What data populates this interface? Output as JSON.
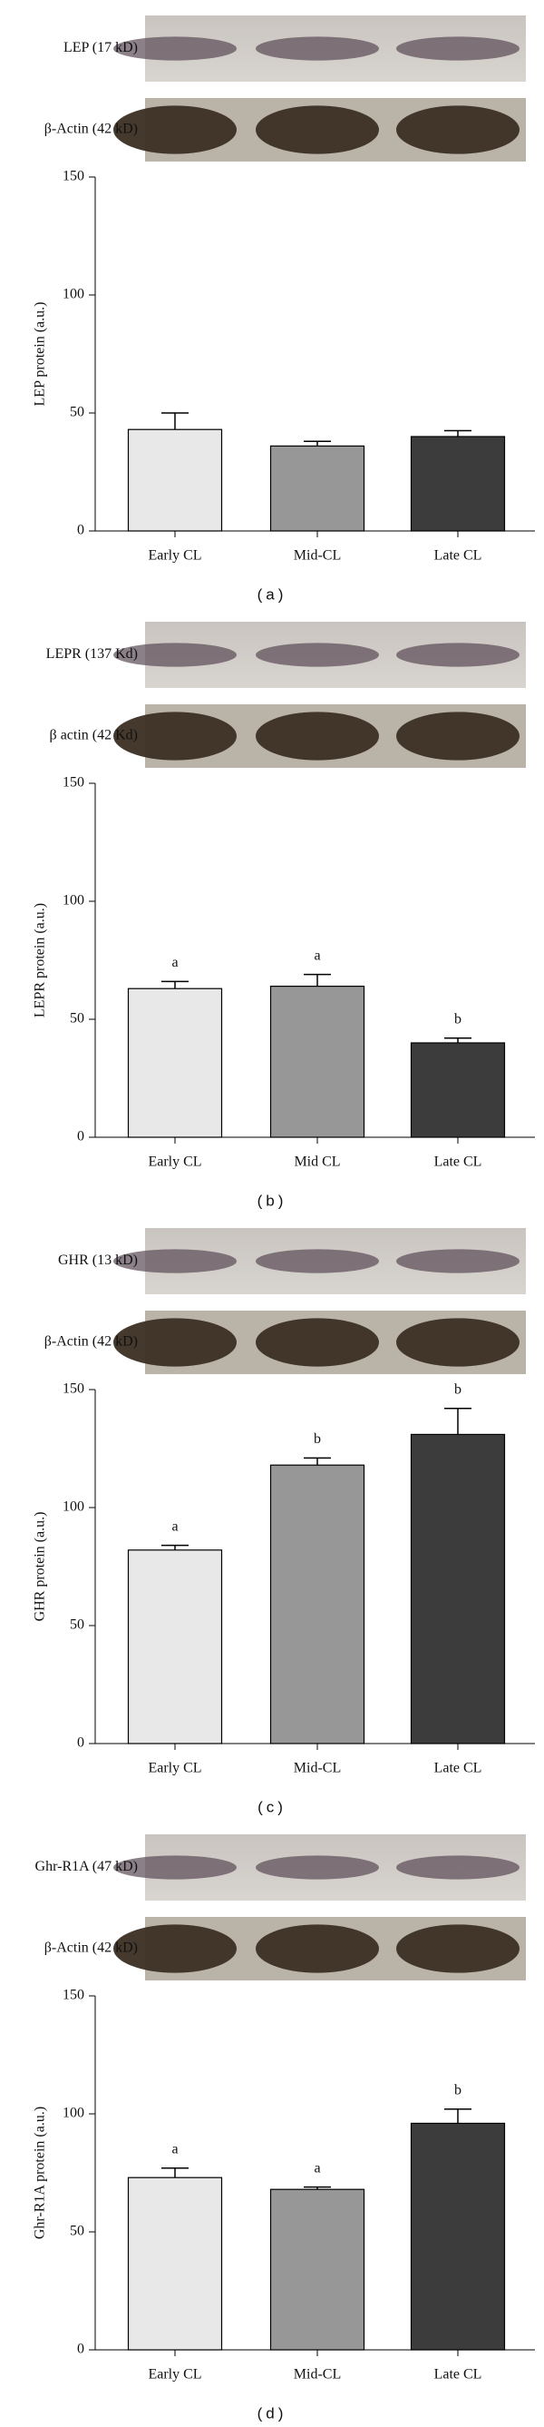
{
  "chart_data": [
    {
      "type": "bar",
      "caption": "(a)",
      "blot_labels": [
        "LEP (17 kD)",
        "β-Actin (42 kD)"
      ],
      "ylabel": "LEP protein (a.u.)",
      "categories": [
        "Early CL",
        "Mid-CL",
        "Late CL"
      ],
      "values": [
        43,
        36,
        40
      ],
      "errors": [
        7,
        2,
        2.5
      ],
      "colors": [
        "#e8e8e8",
        "#979797",
        "#3c3c3c"
      ],
      "ylim": [
        0,
        150
      ],
      "yticks": [
        0,
        50,
        100,
        150
      ]
    },
    {
      "type": "bar",
      "caption": "(b)",
      "blot_labels": [
        "LEPR (137 Kd)",
        "β actin (42 Kd)"
      ],
      "ylabel": "LEPR  protein (a.u.)",
      "categories": [
        "Early CL",
        "Mid CL",
        "Late CL"
      ],
      "values": [
        63,
        64,
        40
      ],
      "errors": [
        3,
        5,
        2
      ],
      "letters": [
        "a",
        "a",
        "b"
      ],
      "colors": [
        "#e8e8e8",
        "#979797",
        "#3c3c3c"
      ],
      "ylim": [
        0,
        150
      ],
      "yticks": [
        0,
        50,
        100,
        150
      ]
    },
    {
      "type": "bar",
      "caption": "(c)",
      "blot_labels": [
        "GHR (13 kD)",
        "β-Actin (42 kD)"
      ],
      "ylabel": "GHR protein (a.u.)",
      "categories": [
        "Early CL",
        "Mid-CL",
        "Late CL"
      ],
      "values": [
        82,
        118,
        131
      ],
      "errors": [
        2,
        3,
        11
      ],
      "letters": [
        "a",
        "b",
        "b"
      ],
      "colors": [
        "#e8e8e8",
        "#979797",
        "#3c3c3c"
      ],
      "ylim": [
        0,
        150
      ],
      "yticks": [
        0,
        50,
        100,
        150
      ]
    },
    {
      "type": "bar",
      "caption": "(d)",
      "blot_labels": [
        "Ghr-R1A (47 kD)",
        "β-Actin (42 kD)"
      ],
      "ylabel": "Ghr-R1A protein (a.u.)",
      "categories": [
        "Early CL",
        "Mid-CL",
        "Late CL"
      ],
      "values": [
        73,
        68,
        96
      ],
      "errors": [
        4,
        1,
        6
      ],
      "letters": [
        "a",
        "a",
        "b"
      ],
      "colors": [
        "#e8e8e8",
        "#979797",
        "#3c3c3c"
      ],
      "ylim": [
        0,
        150
      ],
      "yticks": [
        0,
        50,
        100,
        150
      ]
    }
  ]
}
